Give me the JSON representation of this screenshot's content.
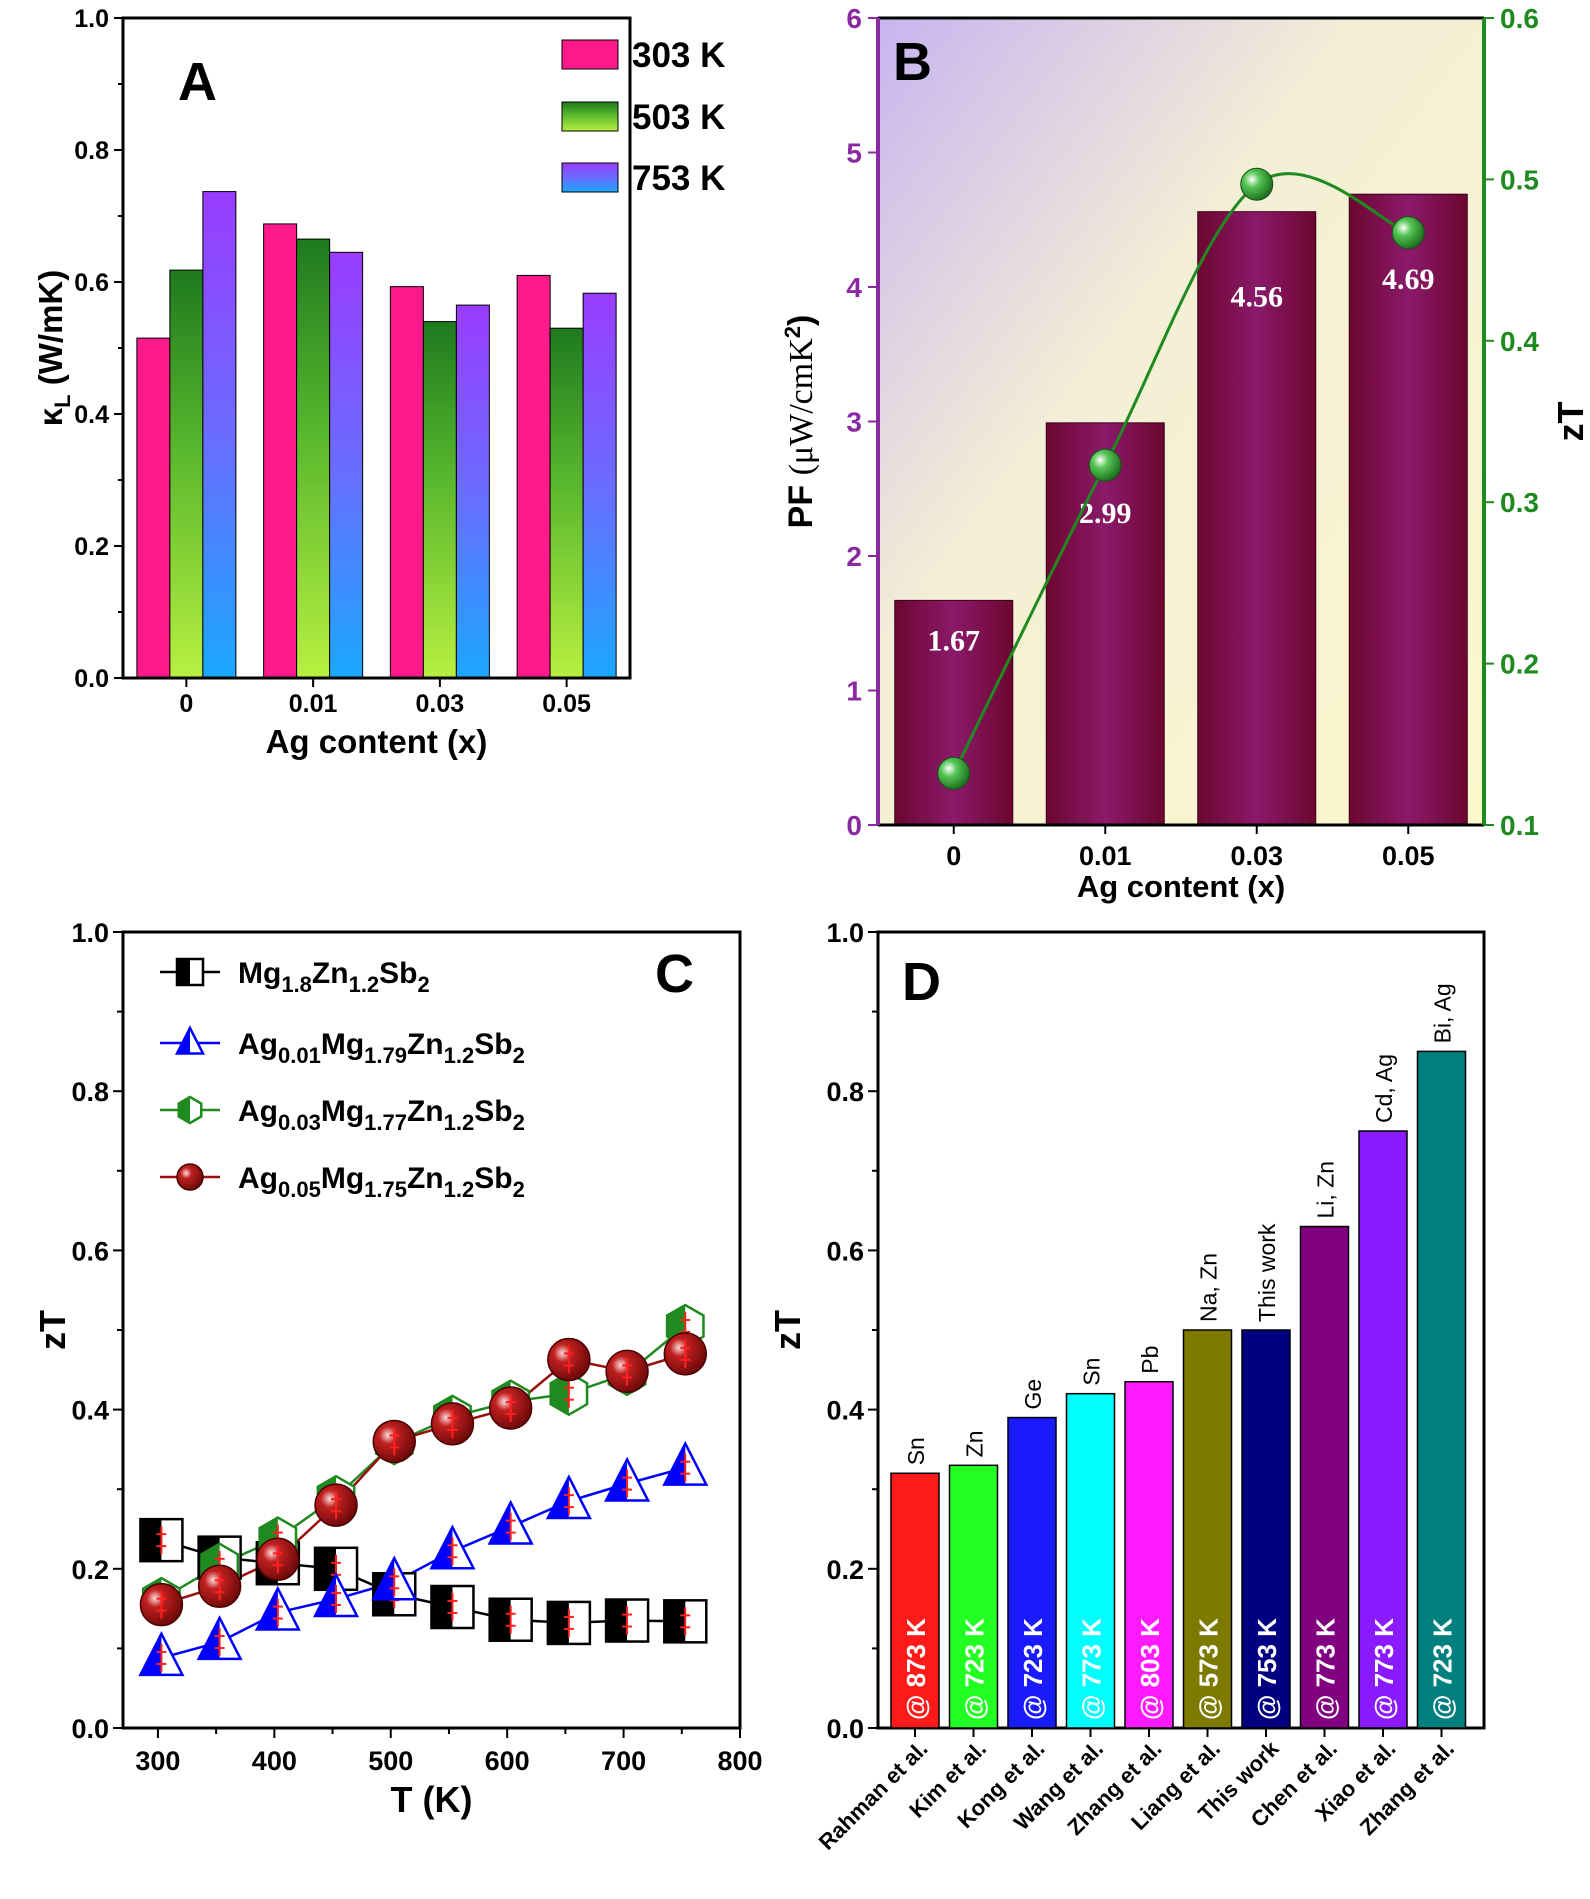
{
  "colors": {
    "pink": "#ff1a8c",
    "green_top": "#1e7a1e",
    "green_bottom": "#b8f040",
    "violet_top": "#9a3cff",
    "violet_bottom": "#1aa8ff",
    "maroon": "#7a0a35",
    "pf_bar_top": "#5a0a4a",
    "zt_line": "#1f8a1f",
    "s1": "#000000",
    "s2": "#0000ff",
    "s3": "#1f8a1f",
    "s4": "#9b0d0d"
  },
  "chart_data": [
    {
      "panel": "A",
      "type": "bar",
      "xlabel": "Ag content (x)",
      "ylabel_main": "κ",
      "ylabel_sub": "L",
      "ylabel_unit": " (W/mK)",
      "ylim": [
        0,
        1.0
      ],
      "yticks": [
        "0.0",
        "0.2",
        "0.4",
        "0.6",
        "0.8",
        "1.0"
      ],
      "categories": [
        "0",
        "0.01",
        "0.03",
        "0.05"
      ],
      "series": [
        {
          "name": "303 K",
          "values": [
            0.515,
            0.688,
            0.593,
            0.61
          ]
        },
        {
          "name": "503 K",
          "values": [
            0.618,
            0.665,
            0.54,
            0.53
          ]
        },
        {
          "name": "753 K",
          "values": [
            0.737,
            0.645,
            0.565,
            0.583
          ]
        }
      ],
      "legend_position": "top-right"
    },
    {
      "panel": "B",
      "type": "bar",
      "xlabel": "Ag content (x)",
      "ylabel_left": "PF",
      "ylabel_left_unit": "(μW/cmK",
      "ylabel_left_sup": "2",
      "ylabel_left_close": ")",
      "ylabel_right": "zT",
      "ylim_left": [
        0,
        6
      ],
      "yticks_left": [
        "0",
        "1",
        "2",
        "3",
        "4",
        "5",
        "6"
      ],
      "ylim_right": [
        0.1,
        0.6
      ],
      "yticks_right": [
        "0.1",
        "0.2",
        "0.3",
        "0.4",
        "0.5",
        "0.6"
      ],
      "categories": [
        "0",
        "0.01",
        "0.03",
        "0.05"
      ],
      "pf_values": [
        1.67,
        2.99,
        4.56,
        4.69
      ],
      "pf_labels": [
        "1.67",
        "2.99",
        "4.56",
        "4.69"
      ],
      "zt_values": [
        0.132,
        0.323,
        0.497,
        0.467
      ]
    },
    {
      "panel": "C",
      "type": "scatter",
      "xlabel": "T (K)",
      "ylabel": "zT",
      "xlim": [
        270,
        800
      ],
      "ylim": [
        0,
        1.0
      ],
      "xticks": [
        "300",
        "400",
        "500",
        "600",
        "700",
        "800"
      ],
      "yticks": [
        "0.0",
        "0.2",
        "0.4",
        "0.6",
        "0.8",
        "1.0"
      ],
      "x": [
        303,
        353,
        403,
        453,
        503,
        553,
        603,
        653,
        703,
        753
      ],
      "series": [
        {
          "name": "Mg1.8Zn1.2Sb2",
          "parts": [
            [
              "Mg",
              ""
            ],
            [
              "1.8",
              "sub"
            ],
            [
              "Zn",
              ""
            ],
            [
              "1.2",
              "sub"
            ],
            [
              "Sb",
              ""
            ],
            [
              "2",
              "sub"
            ]
          ],
          "values": [
            0.236,
            0.214,
            0.207,
            0.2,
            0.168,
            0.152,
            0.136,
            0.132,
            0.135,
            0.134
          ]
        },
        {
          "name": "Ag0.01Mg1.79Zn1.2Sb2",
          "parts": [
            [
              "Ag",
              ""
            ],
            [
              "0.01",
              "sub"
            ],
            [
              "Mg",
              ""
            ],
            [
              "1.79",
              "sub"
            ],
            [
              "Zn",
              ""
            ],
            [
              "1.2",
              "sub"
            ],
            [
              "Sb",
              ""
            ],
            [
              "2",
              "sub"
            ]
          ],
          "values": [
            0.088,
            0.108,
            0.145,
            0.162,
            0.183,
            0.222,
            0.253,
            0.285,
            0.307,
            0.327
          ]
        },
        {
          "name": "Ag0.03Mg1.77Zn1.2Sb2",
          "parts": [
            [
              "Ag",
              ""
            ],
            [
              "0.03",
              "sub"
            ],
            [
              "Mg",
              ""
            ],
            [
              "1.77",
              "sub"
            ],
            [
              "Zn",
              ""
            ],
            [
              "1.2",
              "sub"
            ],
            [
              "Sb",
              ""
            ],
            [
              "2",
              "sub"
            ]
          ],
          "values": [
            0.162,
            0.205,
            0.238,
            0.29,
            0.358,
            0.391,
            0.41,
            0.42,
            0.445,
            0.505
          ]
        },
        {
          "name": "Ag0.05Mg1.75Zn1.2Sb2",
          "parts": [
            [
              "Ag",
              ""
            ],
            [
              "0.05",
              "sub"
            ],
            [
              "Mg",
              ""
            ],
            [
              "1.75",
              "sub"
            ],
            [
              "Zn",
              ""
            ],
            [
              "1.2",
              "sub"
            ],
            [
              "Sb",
              ""
            ],
            [
              "2",
              "sub"
            ]
          ],
          "values": [
            0.155,
            0.178,
            0.212,
            0.28,
            0.36,
            0.382,
            0.402,
            0.463,
            0.448,
            0.47
          ]
        }
      ],
      "legend_position": "top-left"
    },
    {
      "panel": "D",
      "type": "bar",
      "ylabel": "zT",
      "ylim": [
        0,
        1.0
      ],
      "yticks": [
        "0.0",
        "0.2",
        "0.4",
        "0.6",
        "0.8",
        "1.0"
      ],
      "categories": [
        "Rahman et al.",
        "Kim et al.",
        "Kong et al.",
        "Wang et al.",
        "Zhang et al.",
        "Liang et al.",
        "This work",
        "Chen et al.",
        "Xiao et al.",
        "Zhang et al."
      ],
      "values": [
        0.32,
        0.33,
        0.39,
        0.42,
        0.435,
        0.5,
        0.5,
        0.63,
        0.75,
        0.85
      ],
      "top_labels": [
        "Sn",
        "Zn",
        "Ge",
        "Sn",
        "Pb",
        "Na, Zn",
        "This work",
        "Li, Zn",
        "Cd, Ag",
        "Bi, Ag"
      ],
      "bar_labels": [
        "@ 873 K",
        "@ 723 K",
        "@ 723 K",
        "@ 773 K",
        "@ 803 K",
        "@ 573 K",
        "@ 753 K",
        "@ 773 K",
        "@ 773 K",
        "@ 723 K"
      ],
      "colors": [
        "#ff1a1a",
        "#22ff22",
        "#1a1aff",
        "#00ffff",
        "#ff1aff",
        "#7d7a00",
        "#000080",
        "#800080",
        "#8a1aff",
        "#007f7f"
      ]
    }
  ],
  "panels": {
    "A": "A",
    "B": "B",
    "C": "C",
    "D": "D"
  }
}
